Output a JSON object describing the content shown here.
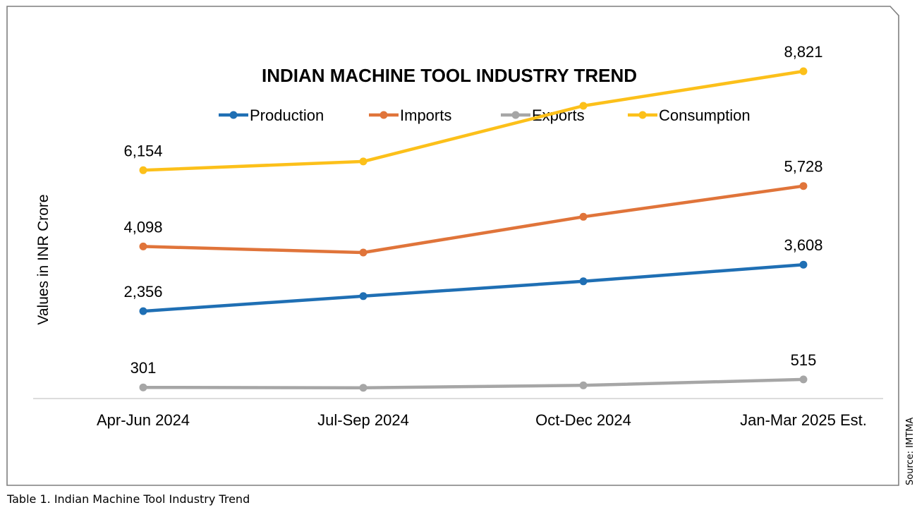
{
  "chart_data": {
    "type": "line",
    "title": "INDIAN MACHINE TOOL INDUSTRY TREND",
    "xlabel": "",
    "ylabel": "Values in INR Crore",
    "categories": [
      "Apr-Jun 2024",
      "Jul-Sep 2024",
      "Oct-Dec 2024",
      "Jan-Mar 2025 Est."
    ],
    "ylim": [
      0,
      10000
    ],
    "grid": false,
    "legend_position": "top",
    "series": [
      {
        "name": "Production",
        "color": "#1f6fb4",
        "values": [
          2356,
          2760,
          3160,
          3608
        ],
        "labels": [
          "2,356",
          "",
          "",
          "3,608"
        ]
      },
      {
        "name": "Imports",
        "color": "#e0743a",
        "values": [
          4098,
          3935,
          4900,
          5728
        ],
        "labels": [
          "4,098",
          "",
          "",
          "5,728"
        ]
      },
      {
        "name": "Exports",
        "color": "#a6a6a6",
        "values": [
          301,
          290,
          355,
          515
        ],
        "labels": [
          "301",
          "",
          "",
          "515"
        ]
      },
      {
        "name": "Consumption",
        "color": "#fcc01a",
        "values": [
          6154,
          6390,
          7890,
          8821
        ],
        "labels": [
          "6,154",
          "",
          "",
          "8,821"
        ]
      }
    ]
  },
  "caption": "Table 1. Indian Machine Tool Industry Trend",
  "source": "Source: IMTMA"
}
